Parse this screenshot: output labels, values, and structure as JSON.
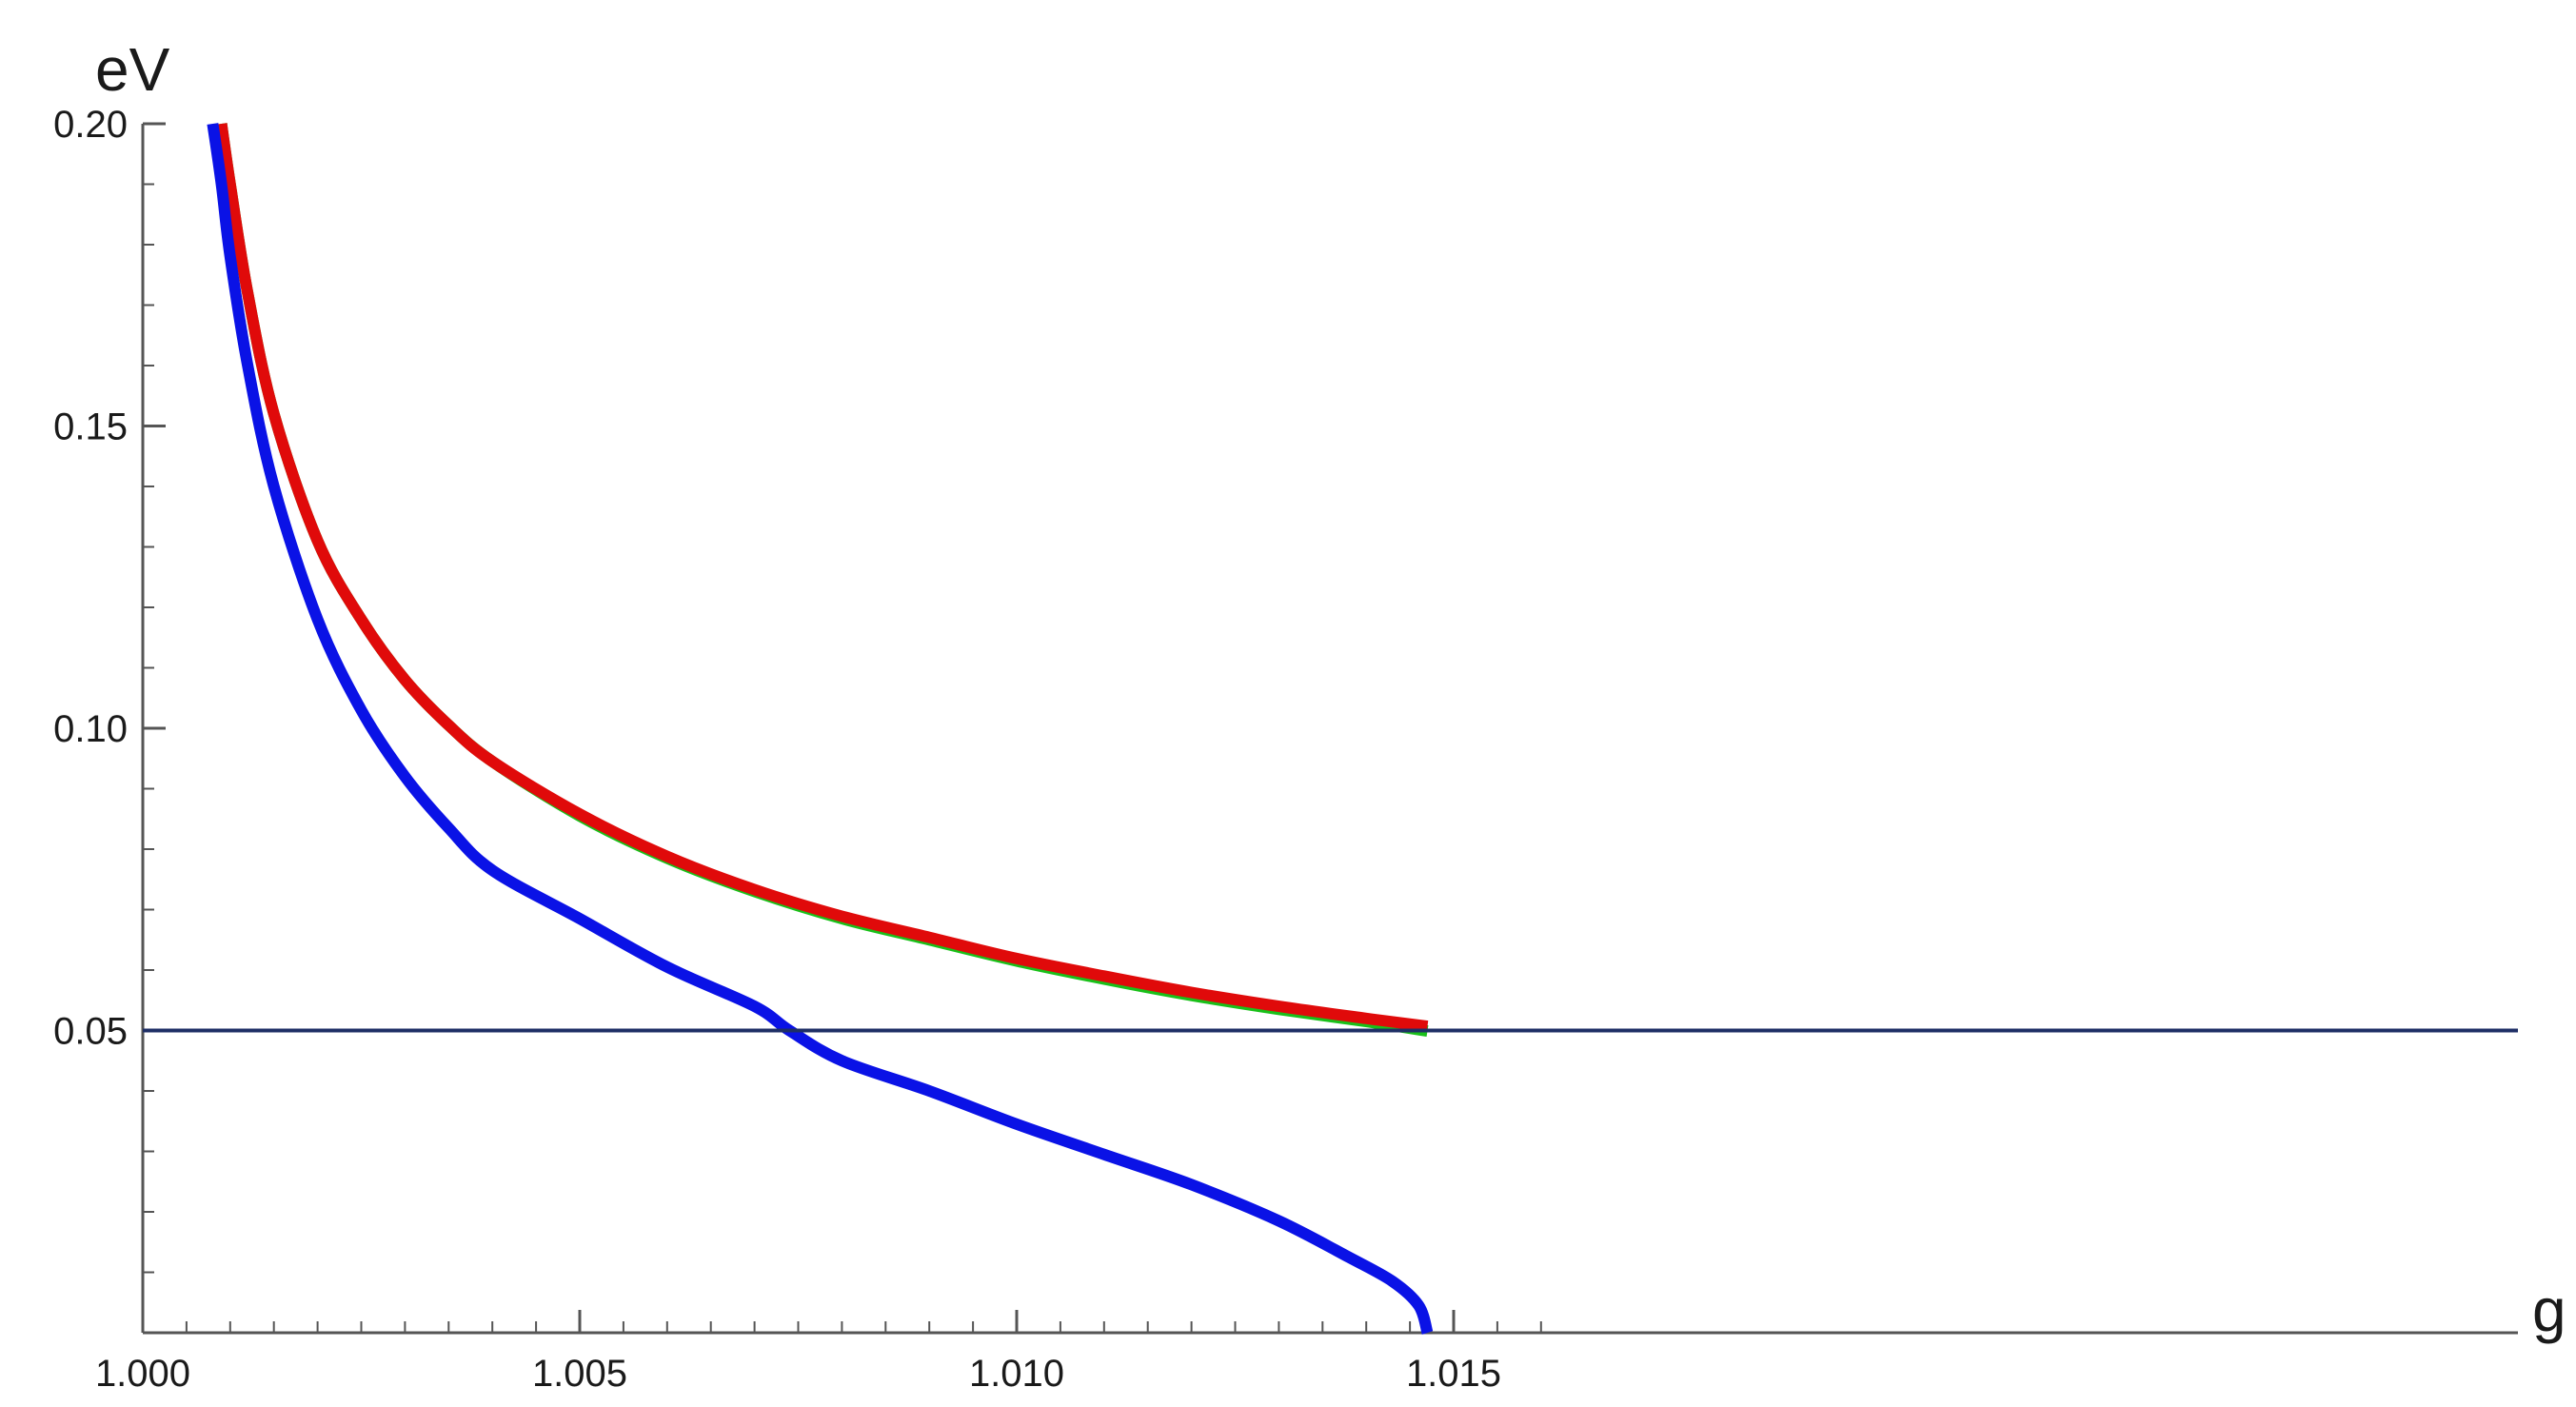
{
  "chart_data": {
    "type": "line",
    "title": "",
    "xlabel": "g",
    "ylabel": "eV",
    "xlim": [
      1.0,
      1.0163
    ],
    "ylim": [
      0.0,
      0.2
    ],
    "x_ticks": [
      "1.000",
      "1.005",
      "1.010",
      "1.015"
    ],
    "x_tick_values": [
      1.0,
      1.005,
      1.01,
      1.015
    ],
    "y_ticks": [
      "0.05",
      "0.10",
      "0.15",
      "0.20"
    ],
    "y_tick_values": [
      0.05,
      0.1,
      0.15,
      0.2
    ],
    "x_minor_step": 0.0005,
    "y_minor_step": 0.01,
    "grid": false,
    "colors": {
      "axis": "#555555",
      "blue": "#0a12e6",
      "red": "#e00a0a",
      "green": "#19c019",
      "reference": "#1f2f66"
    },
    "reference_line": {
      "y": 0.05,
      "color": "#1f2f66"
    },
    "series": [
      {
        "color": "#19c019",
        "points": [
          [
            1.0009,
            0.2
          ],
          [
            1.001,
            0.19
          ],
          [
            1.0012,
            0.172
          ],
          [
            1.0015,
            0.152
          ],
          [
            1.002,
            0.131
          ],
          [
            1.0025,
            0.118
          ],
          [
            1.003,
            0.108
          ],
          [
            1.0035,
            0.1005
          ],
          [
            1.004,
            0.0945
          ],
          [
            1.005,
            0.0855
          ],
          [
            1.006,
            0.0785
          ],
          [
            1.007,
            0.073
          ],
          [
            1.008,
            0.0685
          ],
          [
            1.009,
            0.065
          ],
          [
            1.01,
            0.0615
          ],
          [
            1.011,
            0.0585
          ],
          [
            1.012,
            0.0558
          ],
          [
            1.013,
            0.0535
          ],
          [
            1.014,
            0.0515
          ],
          [
            1.0147,
            0.0499
          ]
        ]
      },
      {
        "color": "#e00a0a",
        "points": [
          [
            1.0009,
            0.2
          ],
          [
            1.001,
            0.19
          ],
          [
            1.0012,
            0.172
          ],
          [
            1.0015,
            0.152
          ],
          [
            1.002,
            0.131
          ],
          [
            1.0025,
            0.118
          ],
          [
            1.003,
            0.108
          ],
          [
            1.0035,
            0.1005
          ],
          [
            1.004,
            0.0945
          ],
          [
            1.005,
            0.0858
          ],
          [
            1.006,
            0.0788
          ],
          [
            1.007,
            0.0733
          ],
          [
            1.008,
            0.0689
          ],
          [
            1.009,
            0.0654
          ],
          [
            1.01,
            0.0619
          ],
          [
            1.011,
            0.059
          ],
          [
            1.012,
            0.0563
          ],
          [
            1.013,
            0.054
          ],
          [
            1.014,
            0.052
          ],
          [
            1.0147,
            0.0507
          ]
        ]
      },
      {
        "color": "#0a12e6",
        "points": [
          [
            1.0008,
            0.2
          ],
          [
            1.0009,
            0.19
          ],
          [
            1.001,
            0.178
          ],
          [
            1.0012,
            0.16
          ],
          [
            1.0015,
            0.14
          ],
          [
            1.002,
            0.118
          ],
          [
            1.0025,
            0.103
          ],
          [
            1.003,
            0.092
          ],
          [
            1.0035,
            0.0835
          ],
          [
            1.004,
            0.0765
          ],
          [
            1.005,
            0.0685
          ],
          [
            1.006,
            0.0605
          ],
          [
            1.007,
            0.054
          ],
          [
            1.0074,
            0.05
          ],
          [
            1.008,
            0.045
          ],
          [
            1.009,
            0.04
          ],
          [
            1.01,
            0.0345
          ],
          [
            1.011,
            0.0295
          ],
          [
            1.012,
            0.0245
          ],
          [
            1.013,
            0.0185
          ],
          [
            1.0138,
            0.0125
          ],
          [
            1.0143,
            0.0085
          ],
          [
            1.0146,
            0.0045
          ],
          [
            1.0147,
            0.0
          ]
        ]
      }
    ]
  }
}
